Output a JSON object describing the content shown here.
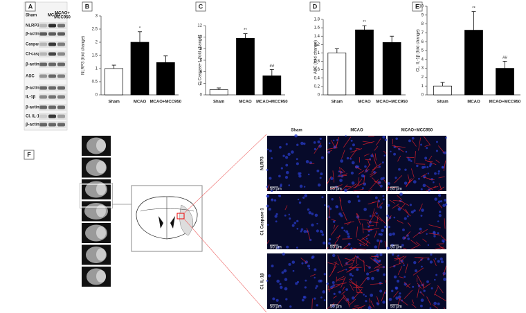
{
  "chart_data": [
    {
      "type": "bar",
      "panel_label": "B",
      "ylabel": "NLRP3 (fold change)",
      "categories": [
        "Sham",
        "MCAO",
        "MCAO+MCC950"
      ],
      "values": [
        1.0,
        2.0,
        1.23
      ],
      "errors": [
        0.13,
        0.4,
        0.25
      ],
      "annotations": [
        null,
        "*",
        null
      ],
      "colors": [
        "#ffffff",
        "#000000",
        "#000000"
      ],
      "ylim": [
        0,
        3
      ],
      "yticks": [
        0,
        0.5,
        1,
        1.5,
        2,
        2.5,
        3
      ]
    },
    {
      "type": "bar",
      "panel_label": "C",
      "ylabel": "Cl Caspase-1 (fold change)",
      "categories": [
        "Sham",
        "MCAO",
        "MCAO+MCC950"
      ],
      "values": [
        0.9,
        9.8,
        3.3
      ],
      "errors": [
        0.3,
        0.8,
        1.1
      ],
      "annotations": [
        null,
        "**",
        "##"
      ],
      "colors": [
        "#ffffff",
        "#000000",
        "#000000"
      ],
      "ylim": [
        0,
        12
      ],
      "yticks": [
        0,
        2,
        4,
        6,
        8,
        10,
        12
      ]
    },
    {
      "type": "bar",
      "panel_label": "D",
      "ylabel": "ASC (fold change)",
      "categories": [
        "Sham",
        "MCAO",
        "MCAO+MCC950"
      ],
      "values": [
        1.0,
        1.55,
        1.25
      ],
      "errors": [
        0.1,
        0.1,
        0.15
      ],
      "annotations": [
        null,
        "**",
        null
      ],
      "colors": [
        "#ffffff",
        "#000000",
        "#000000"
      ],
      "ylim": [
        0,
        1.8
      ],
      "yticks": [
        0,
        0.2,
        0.4,
        0.6,
        0.8,
        1,
        1.2,
        1.4,
        1.6,
        1.8
      ]
    },
    {
      "type": "bar",
      "panel_label": "E",
      "ylabel": "CL. IL-1β (fold change)",
      "categories": [
        "Sham",
        "MCAO",
        "MCAO+MCC950"
      ],
      "values": [
        1.0,
        7.3,
        3.0
      ],
      "errors": [
        0.4,
        2.1,
        0.8
      ],
      "annotations": [
        null,
        "**",
        "##"
      ],
      "colors": [
        "#ffffff",
        "#000000",
        "#000000"
      ],
      "ylim": [
        0,
        10
      ],
      "yticks": [
        0,
        1,
        2,
        3,
        4,
        5,
        6,
        7,
        8,
        9,
        10
      ]
    }
  ],
  "blot": {
    "panel_label": "A",
    "columns": [
      [
        "Sham"
      ],
      [
        "MCAO"
      ],
      [
        "MCAO+",
        "MCC950"
      ]
    ],
    "rows": [
      "NLRP3",
      "β-actin",
      "Caspase-1",
      "Cl-caspase-1",
      "β-actin",
      "ASC",
      "β-actin",
      "IL-1β",
      "β-actin",
      "Cl. IL-1β",
      "β-actin"
    ]
  },
  "imaging": {
    "panel_label": "F",
    "columns": [
      "Sham",
      "MCAO",
      "MCAO+MCC950"
    ],
    "rows": [
      "NLRP3",
      "Cl. Caspase-1",
      "Cl. IL-1β"
    ],
    "scale_bar": "50 μm"
  }
}
